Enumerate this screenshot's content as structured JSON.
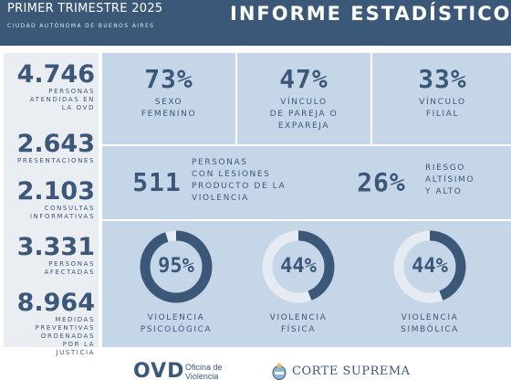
{
  "header": {
    "period": "PRIMER TRIMESTRE 2025",
    "subtitle": "CIUDAD AUTÓNOMA DE BUENOS AIRES",
    "title": "INFORME ESTADÍSTICO"
  },
  "sidebar": {
    "stats": [
      {
        "value": "4.746",
        "label": "PERSONAS\nATENDIDAS EN\nLA OVD"
      },
      {
        "value": "2.643",
        "label": "PRESENTACIONES"
      },
      {
        "value": "2.103",
        "label": "CONSULTAS\nINFORMATIVAS"
      },
      {
        "value": "3.331",
        "label": "PERSONAS\nAFECTADAS"
      },
      {
        "value": "8.964",
        "label": "MEDIDAS\nPREVENTIVAS\nORDENADAS\nPOR LA\nJUSTICIA"
      }
    ]
  },
  "top_row": [
    {
      "value": "73%",
      "label": "SEXO\nFEMENINO"
    },
    {
      "value": "47%",
      "label": "VÍNCULO\nDE PAREJA O\nEXPAREJA"
    },
    {
      "value": "33%",
      "label": "VÍNCULO\nFILIAL"
    }
  ],
  "middle_row": [
    {
      "value": "511",
      "label": "PERSONAS\nCON LESIONES\nPRODUCTO DE LA\nVIOLENCIA"
    },
    {
      "value": "26%",
      "label": "RIESGO\nALTÍSIMO\nY ALTO"
    }
  ],
  "donuts": [
    {
      "value": "95%",
      "fraction": 0.95,
      "label": "VIOLENCIA\nPSICOLÓGICA"
    },
    {
      "value": "44%",
      "fraction": 0.44,
      "label": "VIOLENCIA\nFÍSICA"
    },
    {
      "value": "44%",
      "fraction": 0.44,
      "label": "VIOLENCIA\nSIMBÓLICA"
    }
  ],
  "footer": {
    "ovd_mark": "OVD",
    "ovd_text": "Oficina de\nViolencia",
    "court": "CORTE SUPREMA"
  },
  "colors": {
    "primary": "#3c5878",
    "panel": "#c5d6e8",
    "sidebar": "#eaedf1",
    "ring_track": "#e6ebf1"
  }
}
